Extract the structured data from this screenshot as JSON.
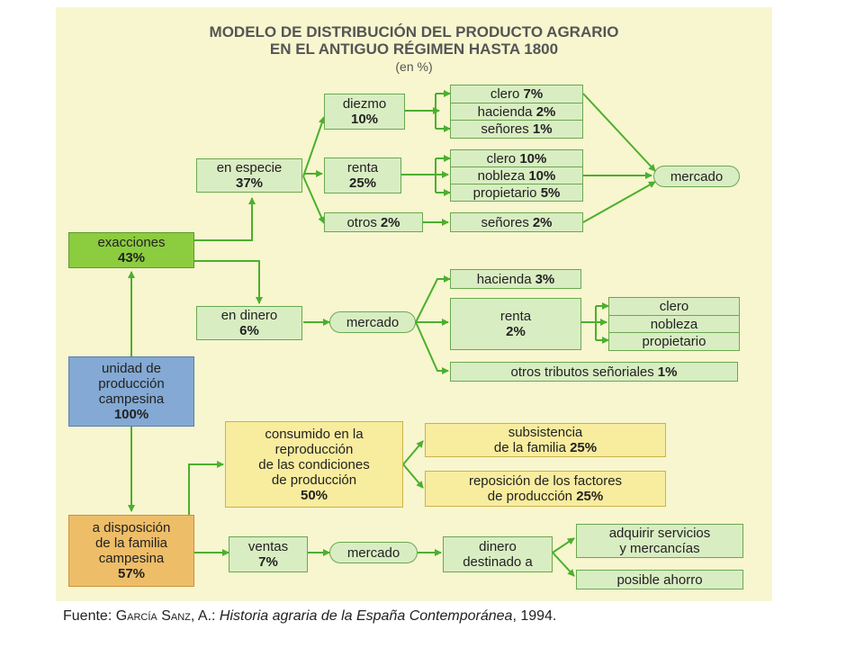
{
  "title": {
    "line1": "MODELO DE DISTRIBUCIÓN DEL PRODUCTO AGRARIO",
    "line2": "EN EL ANTIGUO RÉGIMEN HASTA 1800",
    "units": "(en %)"
  },
  "nodes": {
    "unidad": {
      "line1": "unidad de",
      "line2": "producción",
      "line3": "campesina",
      "value": "100%"
    },
    "exacciones": {
      "label": "exacciones",
      "value": "43%"
    },
    "disposicion": {
      "line1": "a disposición",
      "line2": "de la familia",
      "line3": "campesina",
      "value": "57%"
    },
    "especie": {
      "label": "en especie",
      "value": "37%"
    },
    "dinero": {
      "label": "en dinero",
      "value": "6%"
    },
    "diezmo": {
      "label": "diezmo",
      "value": "10%"
    },
    "renta_especie": {
      "label": "renta",
      "value": "25%"
    },
    "otros": {
      "label": "otros",
      "value": "2%"
    },
    "diezmo_items": [
      {
        "label": "clero",
        "value": "7%"
      },
      {
        "label": "hacienda",
        "value": "2%"
      },
      {
        "label": "señores",
        "value": "1%"
      }
    ],
    "renta_items": [
      {
        "label": "clero",
        "value": "10%"
      },
      {
        "label": "nobleza",
        "value": "10%"
      },
      {
        "label": "propietario",
        "value": "5%"
      }
    ],
    "otros_item": {
      "label": "señores",
      "value": "2%"
    },
    "mercado_especie": "mercado",
    "mercado_dinero": "mercado",
    "hacienda3": {
      "label": "hacienda",
      "value": "3%"
    },
    "renta_dinero": {
      "label": "renta",
      "value": "2%"
    },
    "renta_dinero_items": [
      "clero",
      "nobleza",
      "propietario"
    ],
    "otros_tributos": {
      "label": "otros tributos señoriales",
      "value": "1%"
    },
    "consumido": {
      "line1": "consumido en la",
      "line2": "reproducción",
      "line3": "de las condiciones",
      "line4": "de producción",
      "value": "50%"
    },
    "subsistencia": {
      "line1": "subsistencia",
      "line2": "de la familia",
      "value": "25%"
    },
    "reposicion": {
      "line1": "reposición de los factores",
      "line2": "de producción",
      "value": "25%"
    },
    "ventas": {
      "label": "ventas",
      "value": "7%"
    },
    "mercado_ventas": "mercado",
    "dinero_destinado": {
      "line1": "dinero",
      "line2": "destinado a"
    },
    "adquirir": {
      "line1": "adquirir servicios",
      "line2": "y mercancías"
    },
    "ahorro": "posible ahorro"
  },
  "footer": {
    "prefix": "Fuente: ",
    "author": "García Sanz",
    "author_rest": ", A.: ",
    "work": "Historia agraria de la España Contemporánea",
    "year": ", 1994."
  },
  "colors": {
    "panel": "#f7f6cf",
    "box_green": "#d9edc2",
    "arrow": "#4caf2e",
    "exacciones": "#8ccc3f",
    "unidad": "#83a9d4",
    "disposicion": "#eebd68",
    "yellow": "#f8ec9e"
  }
}
